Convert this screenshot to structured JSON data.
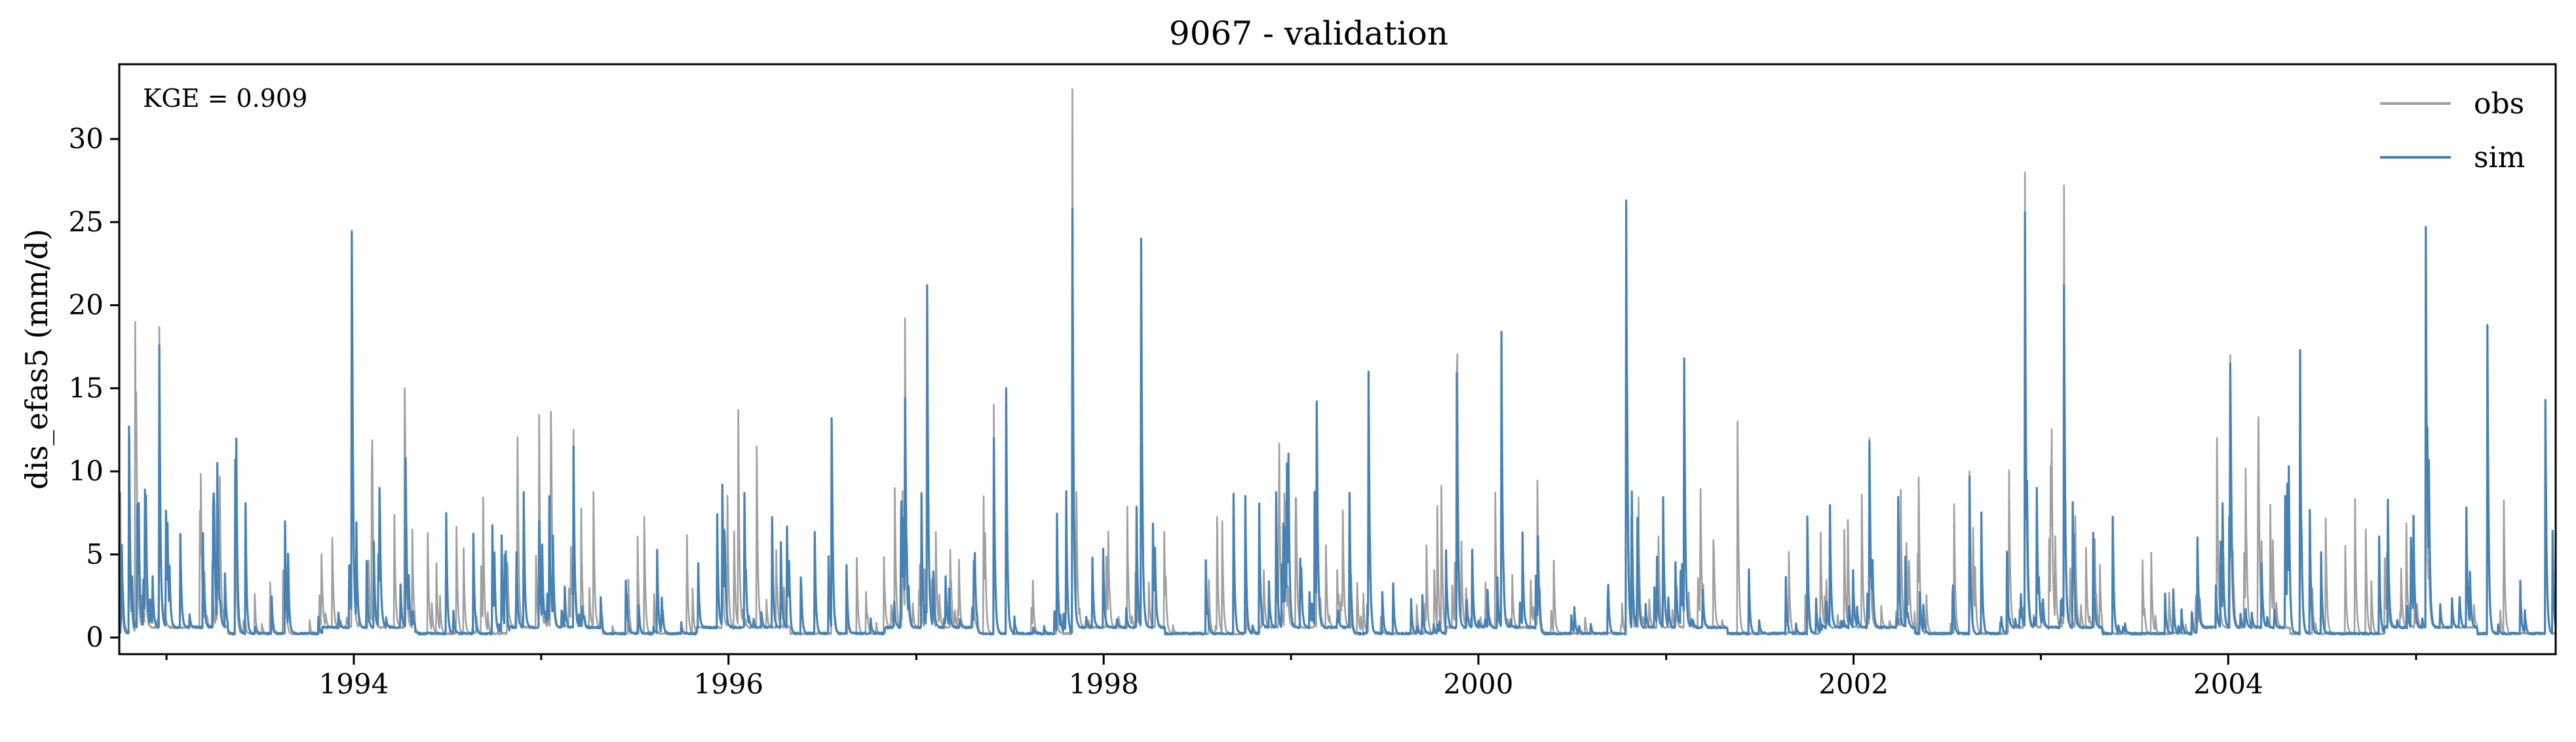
{
  "chart_data": {
    "type": "line",
    "title": "9067 - validation",
    "xlabel": "",
    "ylabel": "dis_efas5 (mm/d)",
    "annotation": "KGE = 0.909",
    "xlim": [
      "1992-10-01",
      "2005-09-30"
    ],
    "ylim": [
      -1,
      34.5
    ],
    "x_ticks": [
      "1994",
      "1996",
      "1998",
      "2000",
      "2002",
      "2004"
    ],
    "y_ticks": [
      "0",
      "5",
      "10",
      "15",
      "20",
      "25",
      "30"
    ],
    "grid": false,
    "legend_position": "top-right",
    "colors": {
      "obs": "#a0a0a0",
      "sim": "#4682b4"
    },
    "series": [
      {
        "name": "obs",
        "peaks": [
          [
            "1992-10-20",
            12.0
          ],
          [
            "1992-11-01",
            19.0
          ],
          [
            "1992-11-20",
            6.0
          ],
          [
            "1992-12-18",
            18.7
          ],
          [
            "1993-04-10",
            10.0
          ],
          [
            "1993-05-15",
            10.0
          ],
          [
            "1993-08-20",
            5.0
          ],
          [
            "1993-11-20",
            6.0
          ],
          [
            "1993-12-28",
            24.5
          ],
          [
            "1994-02-05",
            10.5
          ],
          [
            "1994-04-10",
            15.0
          ],
          [
            "1994-05-25",
            6.3
          ],
          [
            "1994-11-15",
            6.0
          ],
          [
            "1994-12-28",
            13.4
          ],
          [
            "1995-01-20",
            13.6
          ],
          [
            "1995-03-05",
            12.5
          ],
          [
            "1995-06-20",
            3.5
          ],
          [
            "1995-12-20",
            4.5
          ],
          [
            "1996-01-20",
            13.7
          ],
          [
            "1996-02-25",
            11.5
          ],
          [
            "1996-07-20",
            13.0
          ],
          [
            "1996-11-20",
            9.0
          ],
          [
            "1996-12-10",
            19.2
          ],
          [
            "1997-01-22",
            21.0
          ],
          [
            "1997-06-01",
            14.0
          ],
          [
            "1997-06-25",
            14.8
          ],
          [
            "1997-11-01",
            33.0
          ],
          [
            "1998-03-15",
            24.0
          ],
          [
            "1998-08-20",
            7.0
          ],
          [
            "1999-02-20",
            14.2
          ],
          [
            "1999-06-01",
            16.0
          ],
          [
            "1999-11-20",
            16.0
          ],
          [
            "2000-02-15",
            18.4
          ],
          [
            "2000-10-15",
            26.2
          ],
          [
            "2001-02-05",
            16.8
          ],
          [
            "2001-05-20",
            13.0
          ],
          [
            "2002-02-01",
            12.0
          ],
          [
            "2002-08-15",
            10.0
          ],
          [
            "2002-12-01",
            28.0
          ],
          [
            "2003-02-15",
            27.2
          ],
          [
            "2003-12-10",
            12.0
          ],
          [
            "2004-01-05",
            17.0
          ],
          [
            "2004-05-20",
            17.3
          ],
          [
            "2004-09-25",
            6.5
          ],
          [
            "2005-01-20",
            24.7
          ],
          [
            "2005-05-20",
            18.8
          ],
          [
            "2005-09-10",
            14.3
          ]
        ]
      },
      {
        "name": "sim",
        "peaks": [
          [
            "1992-10-20",
            12.7
          ],
          [
            "1992-11-05",
            8.0
          ],
          [
            "1992-12-18",
            17.6
          ],
          [
            "1993-04-10",
            10.5
          ],
          [
            "1993-05-15",
            10.7
          ],
          [
            "1993-08-20",
            7.0
          ],
          [
            "1993-12-28",
            24.4
          ],
          [
            "1994-02-20",
            9.0
          ],
          [
            "1994-04-12",
            10.8
          ],
          [
            "1994-12-28",
            7.0
          ],
          [
            "1995-03-05",
            11.5
          ],
          [
            "1995-12-20",
            9.2
          ],
          [
            "1996-02-01",
            8.7
          ],
          [
            "1996-07-20",
            13.2
          ],
          [
            "1996-12-10",
            14.4
          ],
          [
            "1997-01-22",
            21.2
          ],
          [
            "1997-06-01",
            12.0
          ],
          [
            "1997-06-25",
            15.0
          ],
          [
            "1997-11-01",
            25.8
          ],
          [
            "1998-03-15",
            24.0
          ],
          [
            "1999-02-20",
            14.2
          ],
          [
            "1999-06-01",
            16.0
          ],
          [
            "1999-11-20",
            15.9
          ],
          [
            "2000-02-15",
            18.4
          ],
          [
            "2000-10-15",
            26.3
          ],
          [
            "2001-02-05",
            16.8
          ],
          [
            "2002-02-01",
            11.8
          ],
          [
            "2002-08-15",
            9.7
          ],
          [
            "2002-12-01",
            25.6
          ],
          [
            "2003-02-15",
            21.2
          ],
          [
            "2004-01-05",
            16.5
          ],
          [
            "2004-05-20",
            17.3
          ],
          [
            "2005-01-20",
            24.7
          ],
          [
            "2005-05-20",
            18.8
          ],
          [
            "2005-09-10",
            14.3
          ]
        ]
      }
    ]
  }
}
